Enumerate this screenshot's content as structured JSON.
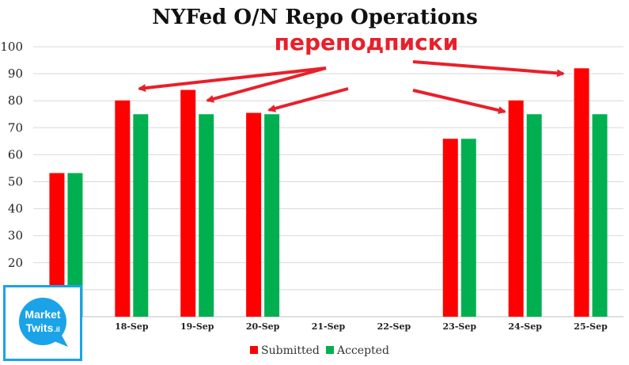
{
  "chart_data": {
    "type": "bar",
    "title": "NYFed O/N Repo Operations",
    "categories": [
      "",
      "18-Sep",
      "19-Sep",
      "20-Sep",
      "21-Sep",
      "22-Sep",
      "23-Sep",
      "24-Sep",
      "25-Sep"
    ],
    "series": [
      {
        "name": "Submitted",
        "color": "#ff0000",
        "values": [
          53.2,
          80.1,
          84.0,
          75.5,
          null,
          null,
          65.9,
          80.1,
          92.0
        ]
      },
      {
        "name": "Accepted",
        "color": "#00b050",
        "values": [
          53.2,
          75.0,
          75.0,
          75.0,
          null,
          null,
          65.9,
          75.0,
          75.0
        ]
      }
    ],
    "ylim": [
      0,
      100
    ],
    "yticks": [
      0,
      10,
      20,
      30,
      40,
      50,
      60,
      70,
      80,
      90,
      100
    ],
    "grid": true,
    "legend_position": "bottom",
    "xlabel": "",
    "ylabel": "",
    "annotation": {
      "text": "переподписки",
      "color": "#e8202a"
    }
  },
  "logo": {
    "line1": "Market",
    "line2": "Twits",
    "suffix": ".il",
    "color": "#1aa3e8"
  }
}
